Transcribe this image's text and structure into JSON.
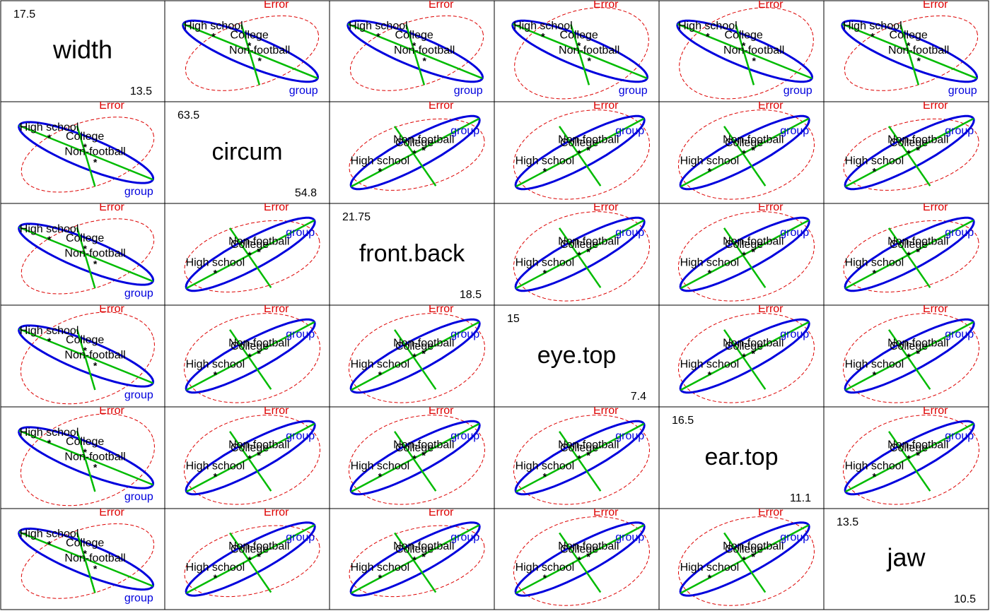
{
  "chart_data": {
    "type": "scatter-matrix",
    "title": "",
    "variables": [
      "width",
      "circum",
      "front.back",
      "eye.top",
      "ear.top",
      "jaw"
    ],
    "ranges": {
      "width": {
        "max": "17.5",
        "min": "13.5"
      },
      "circum": {
        "max": "63.5",
        "min": "54.8"
      },
      "front.back": {
        "max": "21.75",
        "min": "18.5"
      },
      "eye.top": {
        "max": "15",
        "min": "7.4"
      },
      "ear.top": {
        "max": "16.5",
        "min": "11.1"
      },
      "jaw": {
        "max": "13.5",
        "min": "10.5"
      }
    },
    "groups": [
      "High school",
      "Non-football",
      "College"
    ],
    "error_label": "Error",
    "hypothesis_label": "group",
    "colors": {
      "hypothesis": "#0000DD",
      "error": "#DD0000",
      "means": "#00BB00",
      "points": "#000000",
      "text": "#000000"
    },
    "ellipse_style": {
      "hypothesis": "solid",
      "error": "dashed"
    },
    "grid": false,
    "legend": "none"
  }
}
